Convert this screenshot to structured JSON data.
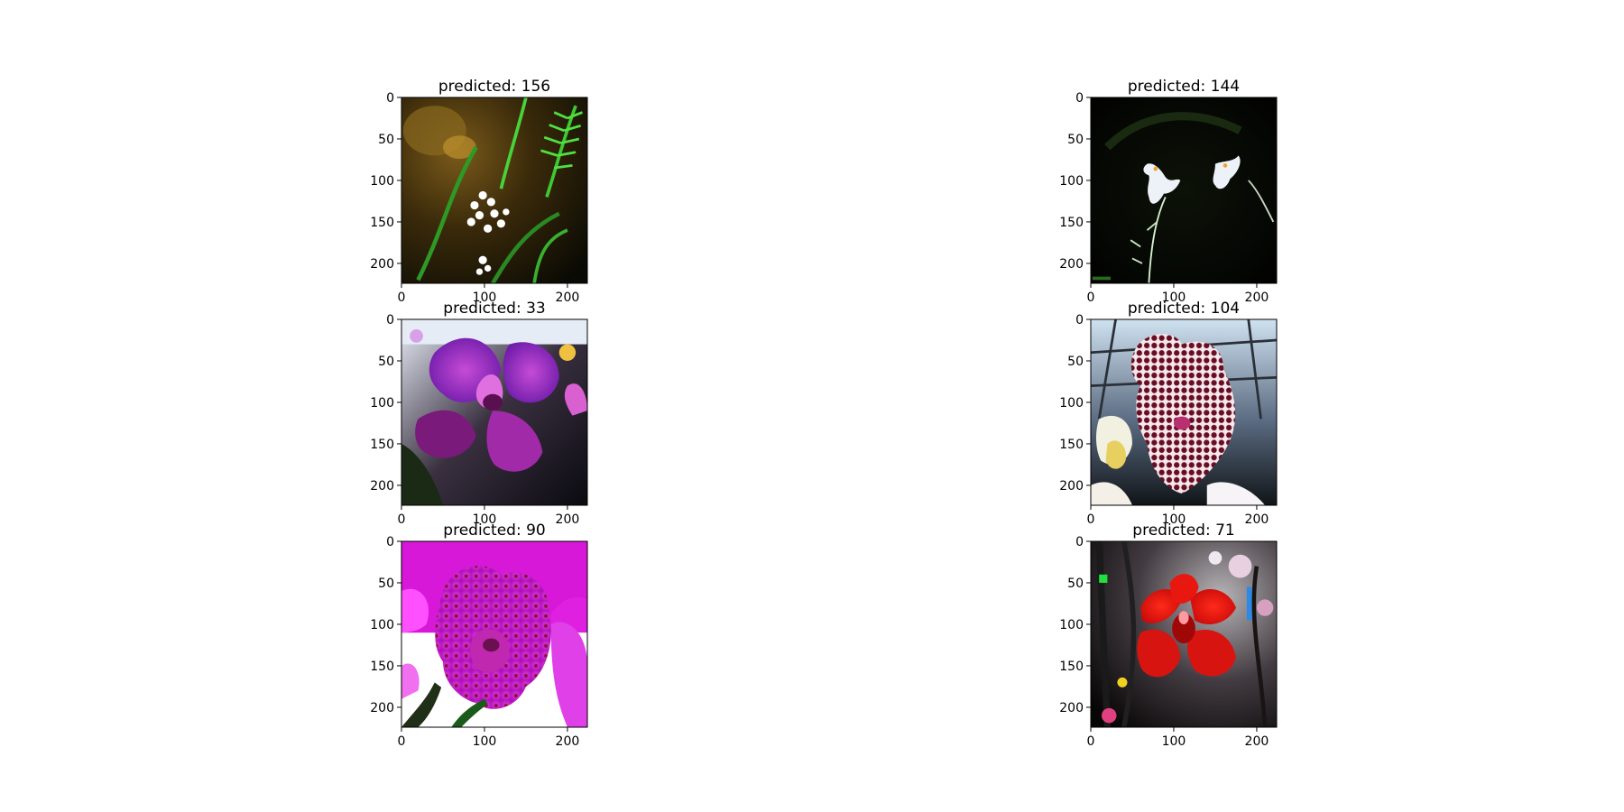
{
  "chart_data": {
    "type": "image-grid",
    "image_size": [
      224,
      224
    ],
    "x_ticks": [
      0,
      100,
      200
    ],
    "x_tick_labels": [
      "0",
      "100",
      "200"
    ],
    "y_ticks": [
      0,
      50,
      100,
      150,
      200
    ],
    "y_tick_labels": [
      "0",
      "50",
      "100",
      "150",
      "200"
    ],
    "panels": [
      {
        "title": "predicted: 156",
        "predicted_class": 156,
        "content": "white flowers and green ferns"
      },
      {
        "title": "predicted: 144",
        "predicted_class": 144,
        "content": "white orchids on dark background"
      },
      {
        "title": "predicted: 33",
        "predicted_class": 33,
        "content": "purple orchid"
      },
      {
        "title": "predicted: 104",
        "predicted_class": 104,
        "content": "spotted maroon orchid"
      },
      {
        "title": "predicted: 90",
        "predicted_class": 90,
        "content": "magenta spotted orchid"
      },
      {
        "title": "predicted: 71",
        "predicted_class": 71,
        "content": "red orchid"
      }
    ]
  },
  "colors": {
    "background": "#ffffff",
    "axis": "#000000"
  }
}
